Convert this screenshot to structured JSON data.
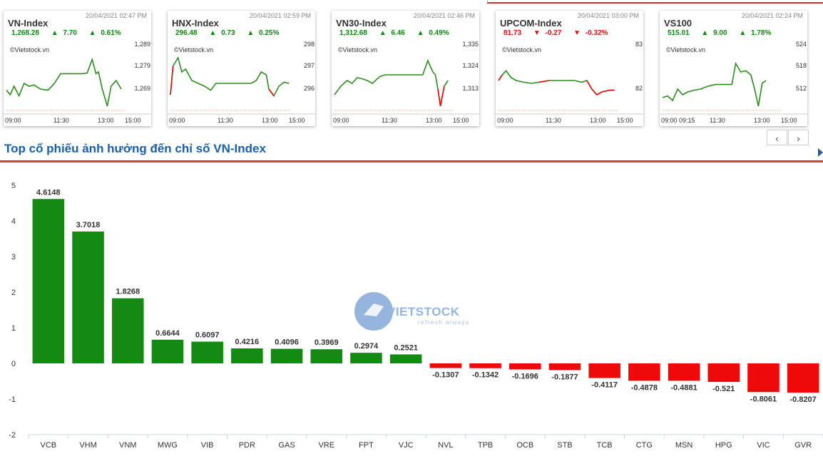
{
  "watermark": {
    "brand": "VIETSTOCK",
    "tagline": "refresh always"
  },
  "cards": [
    {
      "name": "VN-Index",
      "timestamp": "20/04/2021 02:47 PM",
      "value": "1,268.28",
      "change": "7.70",
      "pct": "0.61%",
      "dir": "up",
      "source": "©Vietstock.vn",
      "yticks": [
        "1,289",
        "1,279",
        "1,269"
      ],
      "xticks": [
        "09:00",
        "11:30",
        "13:00",
        "15:00"
      ],
      "color": "#2e8b20"
    },
    {
      "name": "HNX-Index",
      "timestamp": "20/04/2021 02:59 PM",
      "value": "296.48",
      "change": "0.73",
      "pct": "0.25%",
      "dir": "up",
      "source": "©Vietstock.vn",
      "yticks": [
        "298",
        "297",
        "296"
      ],
      "xticks": [
        "09:00",
        "11:30",
        "13:00",
        "15:00"
      ],
      "color": "#2e8b20"
    },
    {
      "name": "VN30-Index",
      "timestamp": "20/04/2021 02:46 PM",
      "value": "1,312.68",
      "change": "6.46",
      "pct": "0.49%",
      "dir": "up",
      "source": "©Vietstock.vn",
      "yticks": [
        "1,335",
        "1,324",
        "1,313"
      ],
      "xticks": [
        "09:00",
        "11:30",
        "13:00",
        "15:00"
      ],
      "color": "#2e8b20"
    },
    {
      "name": "UPCOM-Index",
      "timestamp": "20/04/2021 03:00 PM",
      "value": "81.73",
      "change": "-0.27",
      "pct": "-0.32%",
      "dir": "down",
      "source": "©Vietstock.vn",
      "yticks": [
        "83",
        "",
        "82"
      ],
      "xticks": [
        "09:00",
        "11:30",
        "13:00",
        "15:00"
      ],
      "color": "#2e8b20"
    },
    {
      "name": "VS100",
      "timestamp": "20/04/2021 02:24 PM",
      "value": "515.01",
      "change": "9.00",
      "pct": "1.78%",
      "dir": "up",
      "source": "©Vietstock.vn",
      "yticks": [
        "524",
        "518",
        "512"
      ],
      "xticks": [
        "09:00 09:15",
        "11:30",
        "13:00",
        "15:00"
      ],
      "color": "#2e8b20"
    }
  ],
  "pager": {
    "prev": "‹",
    "next": "›"
  },
  "section_title": "Top cổ phiếu ảnh hưởng đến chỉ số VN-Index",
  "colors": {
    "positive": "#138a13",
    "negative": "#ee0a0a",
    "title": "#1a5fa8",
    "accent": "#e03a3a"
  },
  "chart_data": {
    "type": "bar",
    "categories": [
      "VCB",
      "VHM",
      "VNM",
      "MWG",
      "VIB",
      "PDR",
      "GAS",
      "VRE",
      "FPT",
      "VJC",
      "NVL",
      "TPB",
      "OCB",
      "STB",
      "TCB",
      "CTG",
      "MSN",
      "HPG",
      "VIC",
      "GVR"
    ],
    "values": [
      4.6148,
      3.7018,
      1.8268,
      0.6644,
      0.6097,
      0.4216,
      0.4096,
      0.3969,
      0.2974,
      0.2521,
      -0.1307,
      -0.1342,
      -0.1696,
      -0.1877,
      -0.4117,
      -0.4878,
      -0.4881,
      -0.521,
      -0.8061,
      -0.8207
    ],
    "labels": [
      "4.6148",
      "3.7018",
      "1.8268",
      "0.6644",
      "0.6097",
      "0.4216",
      "0.4096",
      "0.3969",
      "0.2974",
      "0.2521",
      "-0.1307",
      "-0.1342",
      "-0.1696",
      "-0.1877",
      "-0.4117",
      "-0.4878",
      "-0.4881",
      "-0.521",
      "-0.8061",
      "-0.8207"
    ],
    "yticks": [
      "5",
      "4",
      "3",
      "2",
      "1",
      "0",
      "-1",
      "-2"
    ],
    "ylim": [
      -2,
      5
    ],
    "title": "",
    "xlabel": "",
    "ylabel": ""
  }
}
